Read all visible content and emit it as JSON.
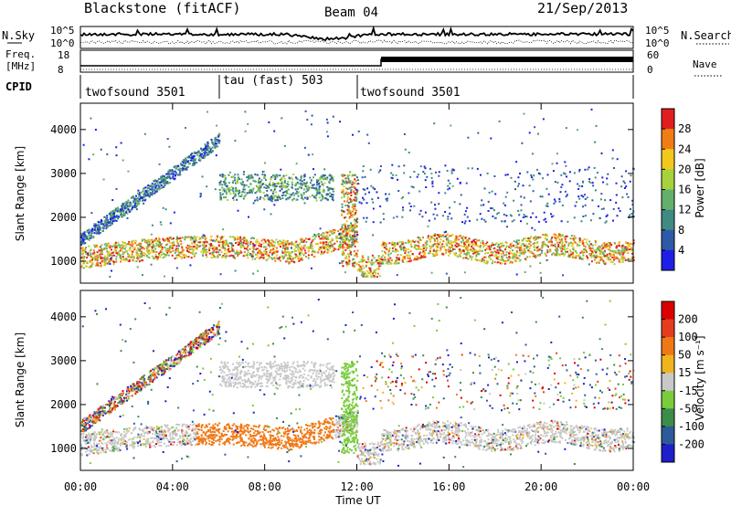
{
  "header": {
    "station": "Blackstone (fitACF)",
    "beam": "Beam 04",
    "date": "21/Sep/2013"
  },
  "noise_panel": {
    "left_label": "N.Sky",
    "right_label": "N.Search",
    "left_ticks": [
      "10^5",
      "10^0"
    ],
    "right_ticks": [
      "10^5",
      "10^0"
    ]
  },
  "freq_panel": {
    "left_label_line1": "Freq.",
    "left_label_line2": "[MHz]",
    "right_label": "Nave",
    "left_ticks": [
      "18",
      "8"
    ],
    "right_ticks": [
      "60",
      "0"
    ]
  },
  "cpid": {
    "label": "CPID",
    "segments": [
      {
        "name": "twofsound 3501",
        "start_ut": 0,
        "end_ut": 6
      },
      {
        "name": "tau (fast) 503",
        "start_ut": 6,
        "end_ut": 12
      },
      {
        "name": "twofsound 3501",
        "start_ut": 12,
        "end_ut": 24
      }
    ]
  },
  "x_axis": {
    "label": "Time UT",
    "ticks": [
      "00:00",
      "04:00",
      "08:00",
      "12:00",
      "16:00",
      "20:00",
      "00:00"
    ]
  },
  "chart_data": [
    {
      "type": "heatmap",
      "quantity": "power",
      "ylabel": "Slant Range [km]",
      "yticks": [
        "1000",
        "2000",
        "3000",
        "4000"
      ],
      "ylim": [
        500,
        4600
      ],
      "xlim": [
        0,
        24
      ],
      "colorbar": {
        "label": "Power [dB]",
        "ticks": [
          "4",
          "8",
          "12",
          "16",
          "20",
          "24",
          "28"
        ],
        "range": [
          0,
          32
        ],
        "colors": [
          "#1e1ee6",
          "#2d5aa6",
          "#3f8a82",
          "#62b06a",
          "#a8d23c",
          "#f2c81e",
          "#f07d14",
          "#e01e1e"
        ]
      }
    },
    {
      "type": "heatmap",
      "quantity": "velocity",
      "ylabel": "Slant Range [km]",
      "yticks": [
        "1000",
        "2000",
        "3000",
        "4000"
      ],
      "ylim": [
        500,
        4600
      ],
      "xlim": [
        0,
        24
      ],
      "colorbar": {
        "label": "Velocity [m s⁻¹]",
        "ticks": [
          "200",
          "100",
          "50",
          "15",
          "-15",
          "-50",
          "-100",
          "-200"
        ],
        "colors": [
          "#1e1ecc",
          "#2d5a9a",
          "#3c8c4a",
          "#7acc3c",
          "#c8c8c8",
          "#f0b41e",
          "#f07814",
          "#e63c1e",
          "#dc0000"
        ]
      }
    }
  ]
}
